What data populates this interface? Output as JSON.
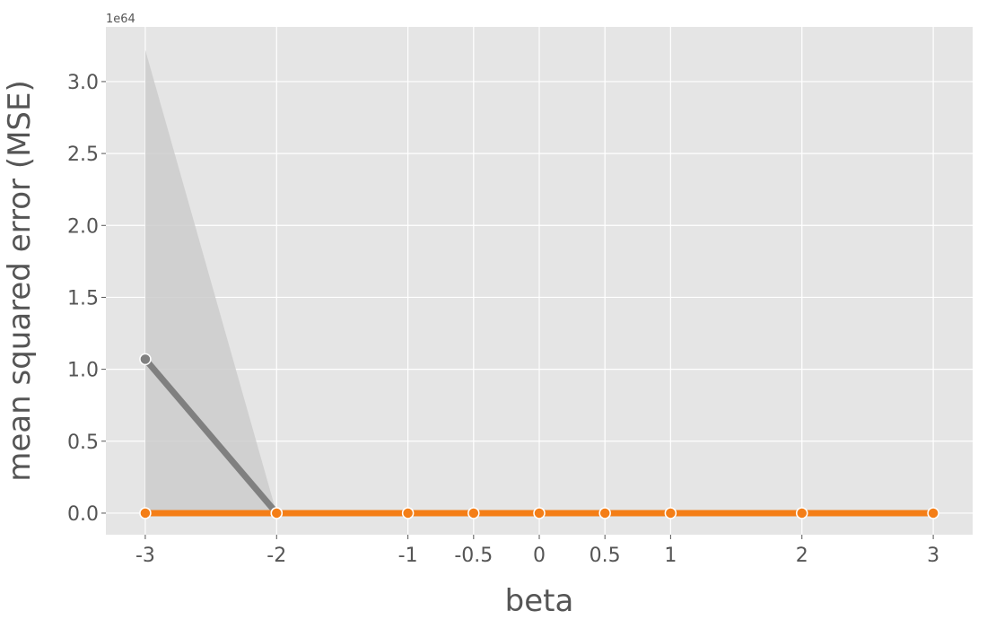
{
  "chart_data": {
    "type": "line",
    "xlabel": "beta",
    "ylabel": "mean squared error (MSE)",
    "y_offset_label": "1e64",
    "x_ticks": [
      -3,
      -2,
      -1,
      -0.5,
      0,
      0.5,
      1,
      2,
      3
    ],
    "x_tick_labels": [
      "-3",
      "-2",
      "-1",
      "-0.5",
      "0",
      "0.5",
      "1",
      "2",
      "3"
    ],
    "y_ticks": [
      0.0,
      0.5,
      1.0,
      1.5,
      2.0,
      2.5,
      3.0
    ],
    "y_tick_labels": [
      "0.0",
      "0.5",
      "1.0",
      "1.5",
      "2.0",
      "2.5",
      "3.0"
    ],
    "xlim": [
      -3.3,
      3.3
    ],
    "ylim": [
      -0.15,
      3.38
    ],
    "grid": true,
    "background": "#e5e5e5",
    "series": [
      {
        "color": "#808080",
        "marker_color": "#808080",
        "x": [
          -3,
          -2
        ],
        "y": [
          1.07,
          0.0
        ],
        "band_upper": [
          3.22,
          0.0
        ],
        "band_lower": [
          0.0,
          0.0
        ],
        "band_color": "#cccccc"
      },
      {
        "color": "#f47e17",
        "marker_color": "#f47e17",
        "x": [
          -3,
          -2,
          -1,
          -0.5,
          0,
          0.5,
          1,
          2,
          3
        ],
        "y": [
          0,
          0,
          0,
          0,
          0,
          0,
          0,
          0,
          0
        ]
      }
    ]
  }
}
